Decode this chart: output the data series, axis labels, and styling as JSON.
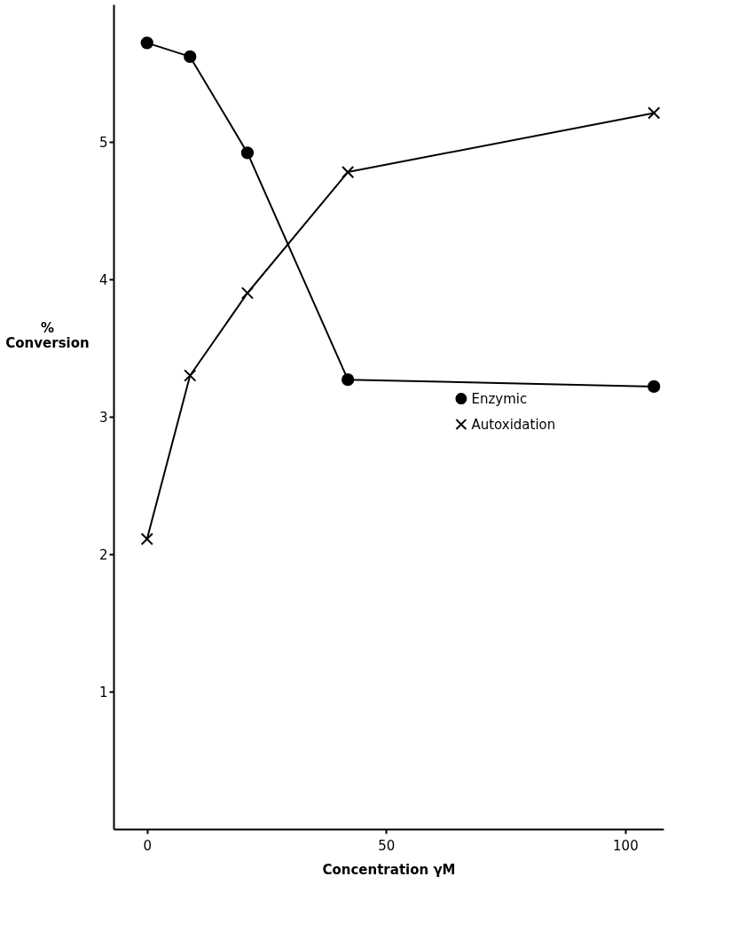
{
  "chart_data": {
    "type": "line",
    "xlabel": "Concentration γM",
    "ylabel": "% Conversion",
    "xlim": [
      -7,
      108
    ],
    "xticks": [
      0,
      50,
      100
    ],
    "ylim": [
      0,
      6
    ],
    "yticks": [
      1,
      2,
      3,
      4,
      5
    ],
    "grid": false,
    "legend": "right",
    "line_style": "solid",
    "series": [
      {
        "name": "Enzymic",
        "color": "#000000",
        "marker": "circle",
        "x": [
          0,
          9,
          21,
          42,
          106
        ],
        "values": [
          5.72,
          5.62,
          4.92,
          3.27,
          3.22
        ]
      },
      {
        "name": "Autoxidation",
        "color": "#000000",
        "marker": "cross",
        "x": [
          0,
          9,
          21,
          42,
          106
        ],
        "values": [
          2.11,
          3.3,
          3.9,
          4.78,
          5.21
        ]
      }
    ]
  }
}
